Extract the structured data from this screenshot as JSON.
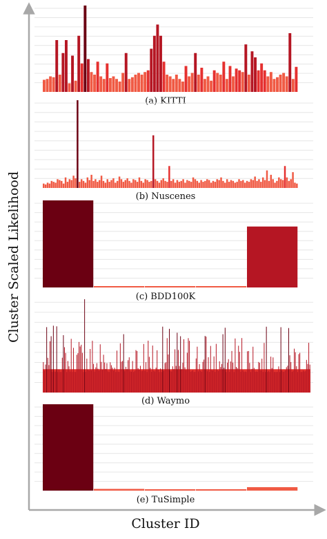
{
  "chart_data": {
    "type": "bar",
    "xlabel": "Cluster ID",
    "ylabel": "Cluster Scaled Likelihood",
    "colors": {
      "dark": "#6b0012",
      "mid": "#b51623",
      "bright": "#e5302f",
      "light": "#f05a44",
      "axis": "#a8a8a8",
      "grid": "#e6e6e6"
    },
    "panels": [
      {
        "caption": "(a) KITTI",
        "grid_lines": 9,
        "values": [
          0.14,
          0.15,
          0.18,
          0.17,
          0.6,
          0.2,
          0.45,
          0.6,
          0.1,
          0.42,
          0.13,
          0.65,
          0.33,
          1.0,
          0.38,
          0.23,
          0.2,
          0.35,
          0.18,
          0.15,
          0.33,
          0.16,
          0.18,
          0.15,
          0.12,
          0.22,
          0.45,
          0.15,
          0.17,
          0.2,
          0.22,
          0.2,
          0.23,
          0.25,
          0.5,
          0.65,
          0.78,
          0.65,
          0.35,
          0.2,
          0.18,
          0.15,
          0.2,
          0.15,
          0.12,
          0.3,
          0.18,
          0.22,
          0.45,
          0.2,
          0.28,
          0.15,
          0.18,
          0.13,
          0.25,
          0.22,
          0.2,
          0.35,
          0.15,
          0.3,
          0.18,
          0.27,
          0.25,
          0.23,
          0.55,
          0.2,
          0.47,
          0.4,
          0.25,
          0.33,
          0.25,
          0.18,
          0.23,
          0.15,
          0.17,
          0.2,
          0.22,
          0.18,
          0.68,
          0.15,
          0.29
        ]
      },
      {
        "caption": "(b) Nuscenes",
        "grid_lines": 9,
        "values": [
          0.05,
          0.04,
          0.06,
          0.05,
          0.08,
          0.07,
          0.06,
          0.1,
          0.09,
          0.08,
          0.05,
          0.12,
          0.07,
          0.1,
          0.09,
          0.14,
          0.11,
          1.0,
          0.07,
          0.1,
          0.08,
          0.06,
          0.12,
          0.09,
          0.15,
          0.08,
          0.1,
          0.07,
          0.09,
          0.14,
          0.08,
          0.06,
          0.1,
          0.07,
          0.09,
          0.11,
          0.06,
          0.08,
          0.13,
          0.1,
          0.07,
          0.09,
          0.11,
          0.08,
          0.06,
          0.1,
          0.09,
          0.07,
          0.12,
          0.08,
          0.06,
          0.1,
          0.09,
          0.07,
          0.08,
          0.6,
          0.1,
          0.08,
          0.06,
          0.09,
          0.11,
          0.08,
          0.07,
          0.25,
          0.08,
          0.1,
          0.06,
          0.09,
          0.07,
          0.08,
          0.1,
          0.06,
          0.09,
          0.08,
          0.07,
          0.12,
          0.1,
          0.08,
          0.06,
          0.09,
          0.07,
          0.08,
          0.1,
          0.09,
          0.06,
          0.08,
          0.07,
          0.1,
          0.09,
          0.12,
          0.08,
          0.06,
          0.1,
          0.07,
          0.09,
          0.08,
          0.06,
          0.07,
          0.1,
          0.08,
          0.09,
          0.06,
          0.08,
          0.07,
          0.1,
          0.09,
          0.13,
          0.08,
          0.1,
          0.07,
          0.12,
          0.09,
          0.2,
          0.08,
          0.15,
          0.1,
          0.06,
          0.08,
          0.12,
          0.1,
          0.09,
          0.25,
          0.12,
          0.08,
          0.1,
          0.18,
          0.06,
          0.05
        ]
      },
      {
        "caption": "(c) BDD100K",
        "grid_lines": 9,
        "values": [
          1.0,
          0.01,
          0.015,
          0.01,
          0.7
        ]
      },
      {
        "caption": "(d) Waymo",
        "grid_lines": 9,
        "values": []
      },
      {
        "caption": "(e) TuSimple",
        "grid_lines": 9,
        "values": [
          1.0,
          0.02,
          0.01,
          0.01,
          0.04
        ]
      }
    ]
  }
}
